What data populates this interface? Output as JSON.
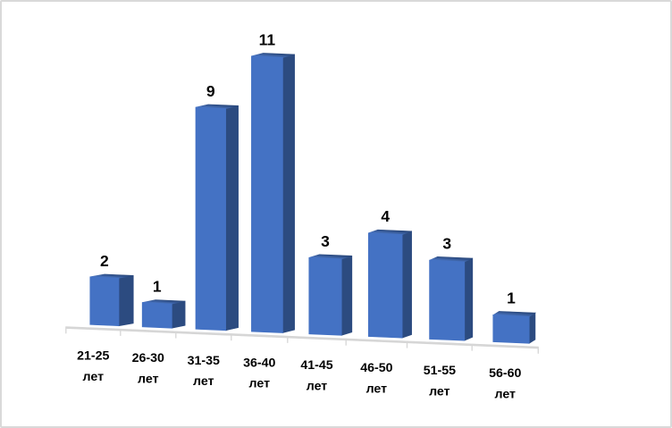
{
  "chart_data": {
    "type": "bar",
    "style": "3d-clustered-column",
    "categories": [
      {
        "line1": "21-25",
        "line2": "лет"
      },
      {
        "line1": "26-30",
        "line2": "лет"
      },
      {
        "line1": "31-35",
        "line2": "лет"
      },
      {
        "line1": "36-40",
        "line2": "лет"
      },
      {
        "line1": "41-45",
        "line2": "лет"
      },
      {
        "line1": "46-50",
        "line2": "лет"
      },
      {
        "line1": "51-55",
        "line2": "лет"
      },
      {
        "line1": "56-60",
        "line2": "лет"
      }
    ],
    "values": [
      2,
      1,
      9,
      11,
      3,
      4,
      3,
      1
    ],
    "value_labels": [
      "2",
      "1",
      "9",
      "11",
      "3",
      "4",
      "3",
      "1"
    ],
    "title": "",
    "xlabel": "",
    "ylabel": "",
    "legend": "none",
    "gridlines": "off",
    "value_axis_visible": false,
    "data_labels_position": "above-column",
    "colors": {
      "column_front": "#4472c4",
      "column_side": "#2c4b80",
      "column_top_light": "#4d7aca",
      "column_top_dark": "#2c4b80",
      "floor_axis": "#d6d6d6",
      "label_text": "#000000",
      "background": "#ffffff",
      "slide_border": "#d9d9d9"
    }
  }
}
